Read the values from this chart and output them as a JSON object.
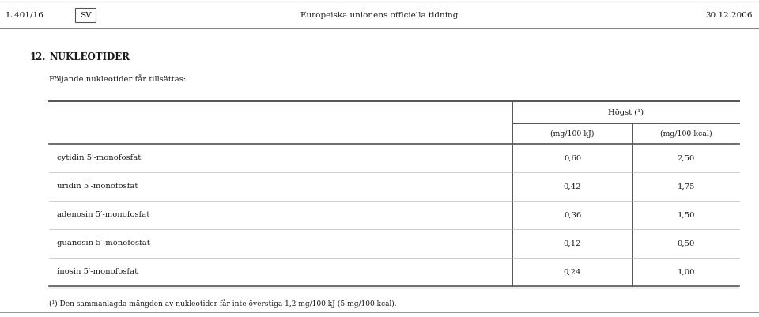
{
  "header_left": "L 401/16",
  "header_center": "Europeiska unionens officiella tidning",
  "header_right": "30.12.2006",
  "header_sv": "SV",
  "section_number": "12.",
  "section_title": "NUKLEOTIDER",
  "subtitle": "Följande nukleotider får tillsättas:",
  "col_header_main": "Högst (¹)",
  "col_header_1": "(mg/100 kJ)",
  "col_header_2": "(mg/100 kcal)",
  "rows": [
    {
      "name": "cytidin 5′-monofosfat",
      "val1": "0,60",
      "val2": "2,50"
    },
    {
      "name": "uridin 5′-monofosfat",
      "val1": "0,42",
      "val2": "1,75"
    },
    {
      "name": "adenosin 5′-monofosfat",
      "val1": "0,36",
      "val2": "1,50"
    },
    {
      "name": "guanosin 5′-monofosfat",
      "val1": "0,12",
      "val2": "0,50"
    },
    {
      "name": "inosin 5′-monofosfat",
      "val1": "0,24",
      "val2": "1,00"
    }
  ],
  "footnote": "(¹) Den sammanlagda mängden av nukleotider får inte överstiga 1,2 mg/100 kJ (5 mg/100 kcal).",
  "bg_color": "#ffffff",
  "text_color": "#1a1a1a",
  "line_color": "#555555",
  "font_size_header": 7.5,
  "font_size_body": 7.2,
  "font_size_footnote": 6.5,
  "font_size_section": 8.5
}
